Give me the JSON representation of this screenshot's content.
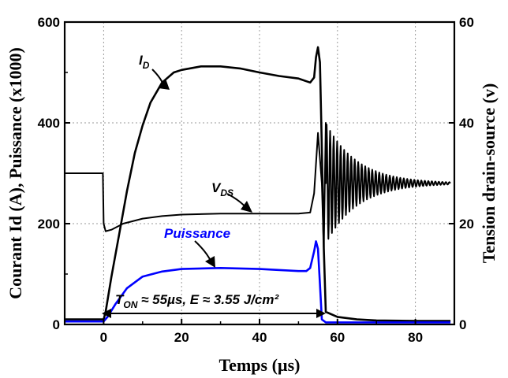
{
  "chart_data": {
    "type": "line",
    "xlabel": "Temps (µs)",
    "ylabel_left": "Courant Id (A), Puissance (x1000)",
    "ylabel_right": "Tension drain-source (v)",
    "xlim": [
      -10,
      90
    ],
    "ylim_left": [
      0,
      600
    ],
    "ylim_right": [
      0,
      60
    ],
    "grid": true,
    "x_ticks": [
      "0",
      "20",
      "40",
      "60",
      "80"
    ],
    "y_left_ticks": [
      "0",
      "200",
      "400",
      "600"
    ],
    "y_right_ticks": [
      "0",
      "20",
      "40",
      "60"
    ],
    "annotations": {
      "id_label": "I",
      "id_sub": "D",
      "vds_label": "V",
      "vds_sub": "DS",
      "power_label": "Puissance",
      "ton_main": "T",
      "ton_sub": "ON",
      "ton_rest": " ≈ 55µs, E ≈ 3.55 J/cm²"
    },
    "series": [
      {
        "name": "I_D",
        "axis": "left",
        "color": "#000000",
        "x": [
          -10,
          0,
          0.5,
          2,
          4,
          6,
          8,
          10,
          12,
          15,
          18,
          20,
          25,
          30,
          35,
          40,
          45,
          50,
          53,
          54,
          54.5,
          55,
          55.5,
          56,
          56.5,
          57,
          60,
          65,
          70,
          80,
          89
        ],
        "y": [
          10,
          10,
          25,
          95,
          180,
          265,
          340,
          395,
          440,
          480,
          500,
          505,
          512,
          512,
          508,
          500,
          493,
          488,
          480,
          490,
          530,
          550,
          520,
          350,
          150,
          25,
          15,
          10,
          8,
          7,
          7
        ]
      },
      {
        "name": "V_DS",
        "axis": "right",
        "color": "#000000",
        "x": [
          -10,
          -0.2,
          0,
          0.5,
          2,
          5,
          10,
          15,
          20,
          30,
          40,
          50,
          53,
          54,
          55,
          56,
          56.5,
          57
        ],
        "y": [
          30,
          30,
          20,
          18.5,
          18.8,
          20,
          21,
          21.5,
          21.8,
          22,
          22,
          22,
          22.2,
          26,
          38,
          28,
          15,
          40
        ]
      },
      {
        "name": "Puissance",
        "axis": "left",
        "color": "#0000ff",
        "x": [
          -10,
          0,
          1,
          3,
          6,
          10,
          15,
          20,
          30,
          40,
          50,
          52,
          53,
          54,
          54.5,
          55,
          55.5,
          56,
          57,
          89
        ],
        "y": [
          6,
          6,
          15,
          40,
          72,
          95,
          105,
          110,
          112,
          110,
          106,
          106,
          112,
          145,
          165,
          150,
          80,
          10,
          4,
          4
        ]
      }
    ],
    "vds_ringing": {
      "x_start": 57,
      "x_end": 89,
      "mean": 28,
      "initial_amplitude": 12,
      "decay_us": 8,
      "period_us": 0.9
    }
  }
}
